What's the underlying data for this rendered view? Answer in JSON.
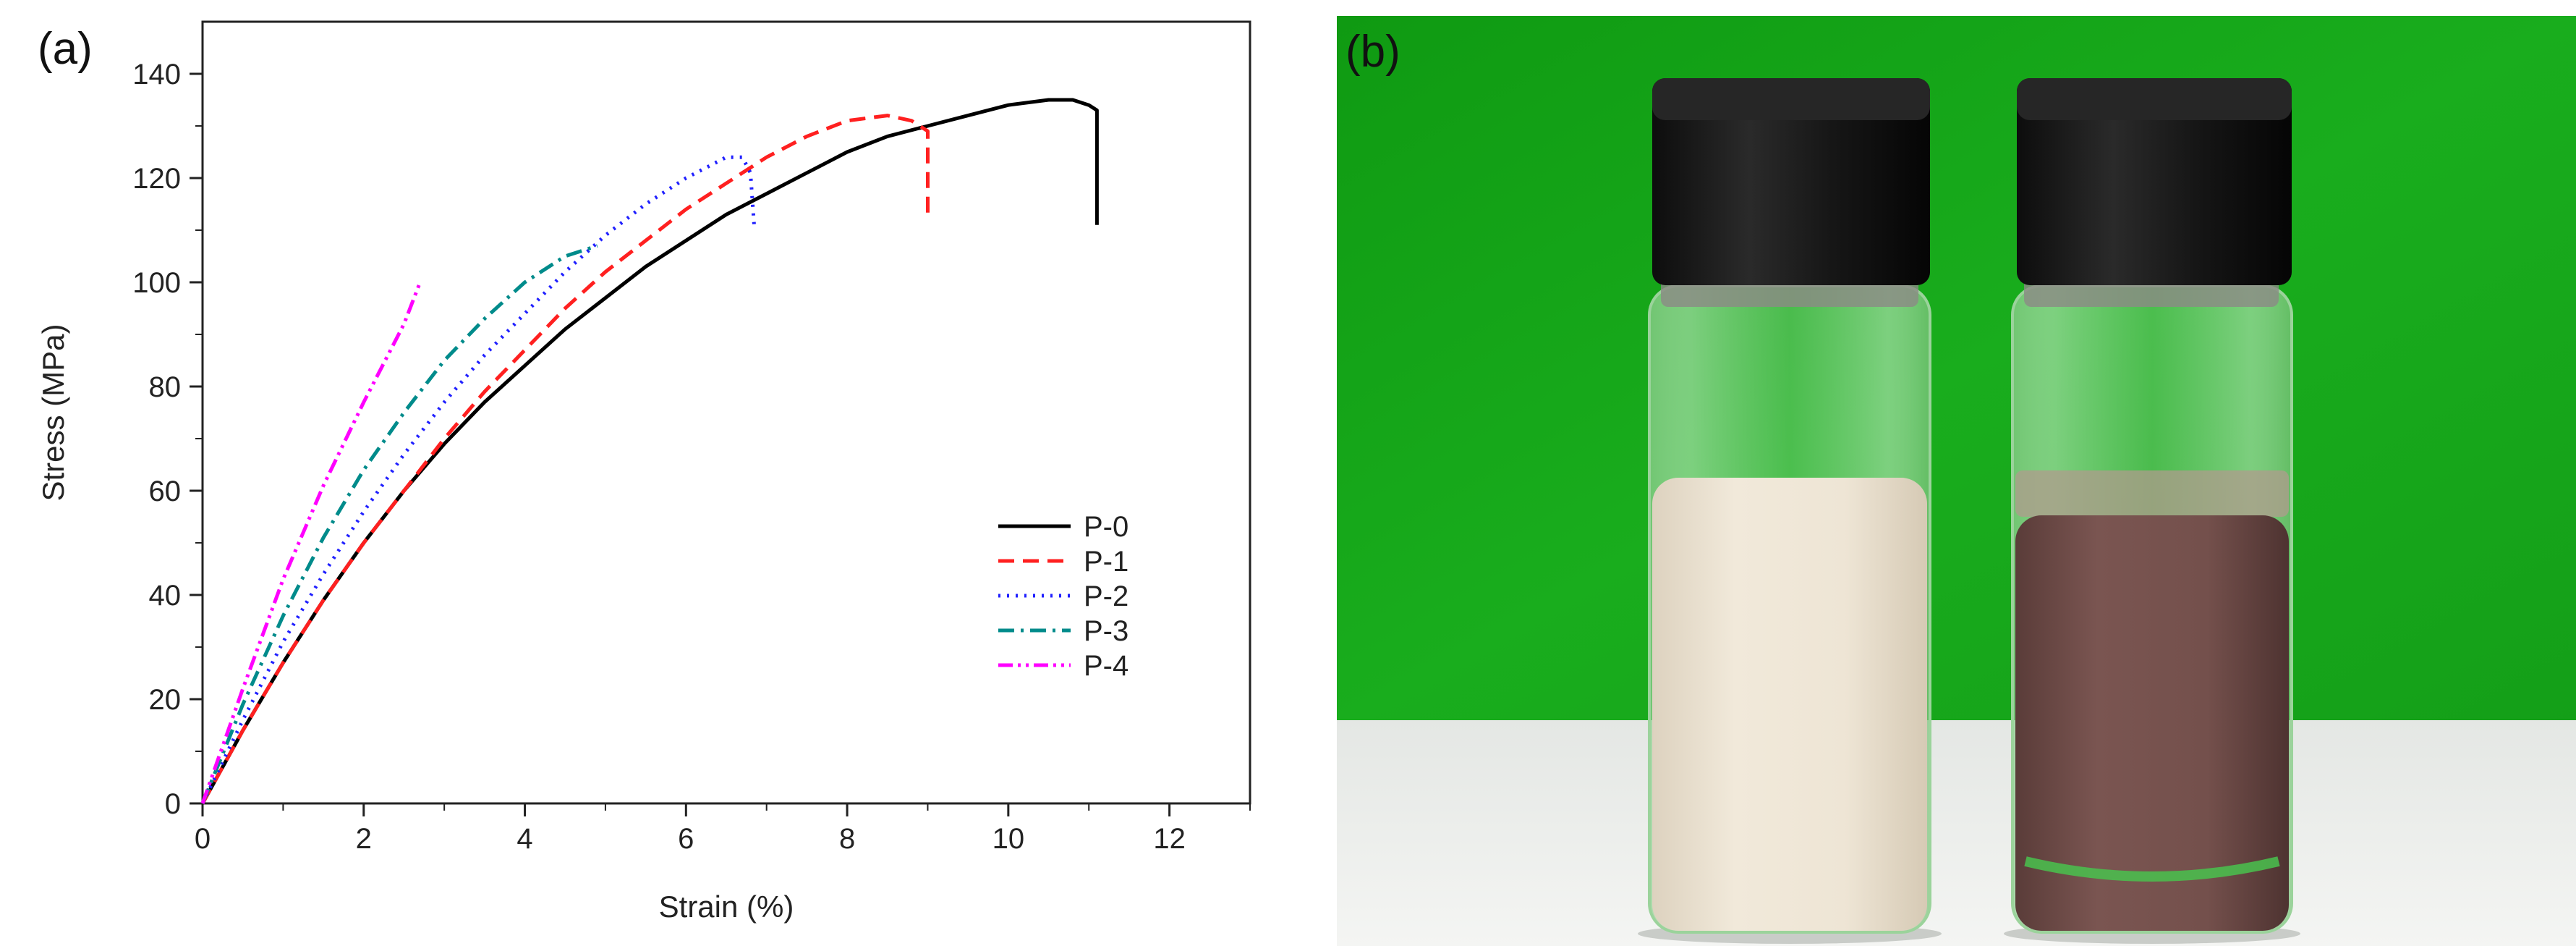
{
  "panel_a_label": "(a)",
  "panel_b_label": "(b)",
  "photo": {
    "colors": {
      "background_green": "#16a51a",
      "table_white": "#eef0ee",
      "cap_black": "#151515",
      "left_liquid": "#ece3d3",
      "right_liquid": "#6c4a47"
    }
  },
  "chart_data": {
    "type": "line",
    "title": "",
    "xlabel": "Strain (%)",
    "ylabel": "Stress (MPa)",
    "xlim": [
      0,
      13
    ],
    "ylim": [
      0,
      150
    ],
    "xticks": [
      0,
      2,
      4,
      6,
      8,
      10,
      12
    ],
    "yticks": [
      0,
      20,
      40,
      60,
      80,
      100,
      120,
      140
    ],
    "grid": false,
    "legend_position": "bottom-right",
    "series": [
      {
        "name": "P-0",
        "color": "#000000",
        "dash": "solid",
        "x": [
          0,
          0.5,
          1,
          1.5,
          2,
          2.5,
          3,
          3.5,
          4,
          4.5,
          5,
          5.5,
          6,
          6.5,
          7,
          7.5,
          8,
          8.5,
          9,
          9.5,
          10,
          10.5,
          10.8,
          11.0,
          11.1,
          11.1
        ],
        "y": [
          0,
          14,
          27,
          39,
          50,
          60,
          69,
          77,
          84,
          91,
          97,
          103,
          108,
          113,
          117,
          121,
          125,
          128,
          130,
          132,
          134,
          135,
          135,
          134,
          133,
          111
        ]
      },
      {
        "name": "P-1",
        "color": "#ff2020",
        "dash": "dashed",
        "x": [
          0,
          0.5,
          1,
          1.5,
          2,
          2.5,
          3,
          3.5,
          4,
          4.5,
          5,
          5.5,
          6,
          6.5,
          7,
          7.5,
          8,
          8.5,
          8.8,
          9.0,
          9.0
        ],
        "y": [
          0,
          14,
          27,
          39,
          50,
          60,
          70,
          79,
          87,
          95,
          102,
          108,
          114,
          119,
          124,
          128,
          131,
          132,
          131,
          129,
          112
        ]
      },
      {
        "name": "P-2",
        "color": "#2020ff",
        "dash": "dotted",
        "x": [
          0,
          0.5,
          1,
          1.5,
          2,
          2.5,
          3,
          3.5,
          4,
          4.5,
          5,
          5.5,
          6,
          6.5,
          6.7,
          6.8,
          6.85
        ],
        "y": [
          0,
          16,
          31,
          44,
          56,
          67,
          77,
          86,
          94,
          102,
          109,
          115,
          120,
          124,
          124,
          121,
          110
        ]
      },
      {
        "name": "P-3",
        "color": "#008b8b",
        "dash": "dash-dot",
        "x": [
          0,
          0.5,
          1,
          1.5,
          2,
          2.5,
          3,
          3.5,
          4,
          4.5,
          4.9
        ],
        "y": [
          0,
          19,
          36,
          51,
          64,
          75,
          85,
          93,
          100,
          105,
          107
        ]
      },
      {
        "name": "P-4",
        "color": "#ff00ff",
        "dash": "dash-dot-dot",
        "x": [
          0,
          0.5,
          1,
          1.5,
          2,
          2.5,
          2.7
        ],
        "y": [
          0,
          22,
          43,
          61,
          77,
          92,
          100
        ]
      }
    ]
  }
}
